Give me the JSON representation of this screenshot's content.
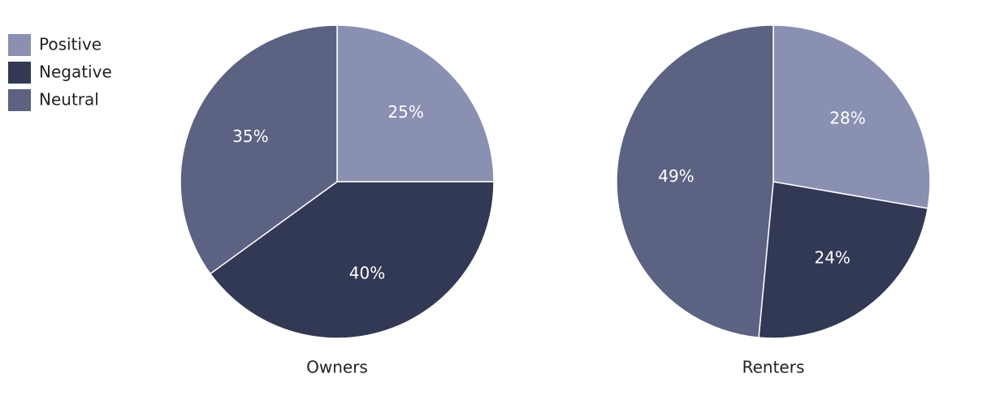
{
  "chart_data": [
    {
      "type": "pie",
      "title": "Owners",
      "categories": [
        "Positive",
        "Negative",
        "Neutral"
      ],
      "colors": [
        "#8a90b2",
        "#323955",
        "#5c6282"
      ],
      "values": [
        25,
        40,
        35
      ],
      "value_labels": [
        "25%",
        "40%",
        "35%"
      ],
      "legend": "top-left"
    },
    {
      "type": "pie",
      "title": "Renters",
      "values": [
        28,
        24,
        49
      ],
      "value_labels": [
        "28%",
        "24%",
        "49%"
      ]
    }
  ]
}
